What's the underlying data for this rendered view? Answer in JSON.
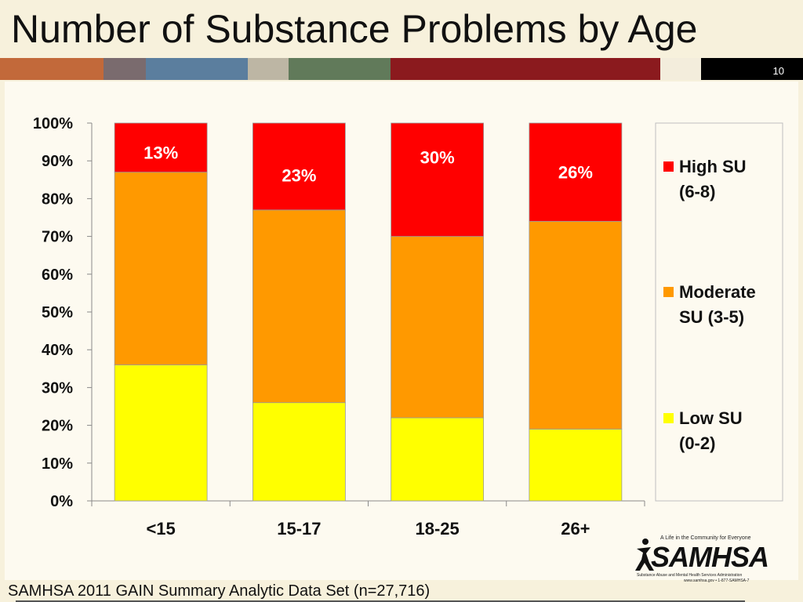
{
  "slide": {
    "title": "Number of Substance Problems by Age",
    "number": "10",
    "source": "SAMHSA 2011 GAIN Summary Analytic Data Set (n=27,716)",
    "strip_colors": [
      "#c2693a",
      "#7a6b6e",
      "#5b7e9e",
      "#bdb6a4",
      "#617a5a",
      "#8b1a1e",
      "#f3eddc",
      "#000000"
    ]
  },
  "logo": {
    "tagline": "A Life in the Community for Everyone",
    "wordmark": "SAMHSA",
    "subtitle": "Substance Abuse and Mental Health Services Administration",
    "contact": "www.samhsa.gov • 1-877-SAMHSA-7"
  },
  "chart_data": {
    "type": "bar",
    "stacked": true,
    "percent_stacked": true,
    "categories": [
      "<15",
      "15-17",
      "18-25",
      "26+"
    ],
    "series": [
      {
        "name": "Low SU (0-2)",
        "color": "#ffff00",
        "values": [
          36,
          26,
          22,
          19
        ]
      },
      {
        "name": "Moderate SU (3-5)",
        "color": "#ff9900",
        "values": [
          51,
          51,
          48,
          55
        ]
      },
      {
        "name": "High SU (6-8)",
        "color": "#ff0000",
        "values": [
          13,
          23,
          30,
          26
        ]
      }
    ],
    "data_labels": {
      "series": "High SU (6-8)",
      "labels": [
        "13%",
        "23%",
        "30%",
        "26%"
      ],
      "color": "#ffffff"
    },
    "y_ticks": [
      "0%",
      "10%",
      "20%",
      "30%",
      "40%",
      "50%",
      "60%",
      "70%",
      "80%",
      "90%",
      "100%"
    ],
    "ylim": [
      0,
      100
    ],
    "legend": {
      "position": "right",
      "entries": [
        {
          "series": "High SU (6-8)",
          "lines": [
            "High SU",
            "(6-8)"
          ]
        },
        {
          "series": "Moderate SU (3-5)",
          "lines": [
            "Moderate",
            "SU (3-5)"
          ]
        },
        {
          "series": "Low SU (0-2)",
          "lines": [
            "Low SU",
            "(0-2)"
          ]
        }
      ]
    },
    "grid": false,
    "title": "",
    "xlabel": "",
    "ylabel": ""
  }
}
